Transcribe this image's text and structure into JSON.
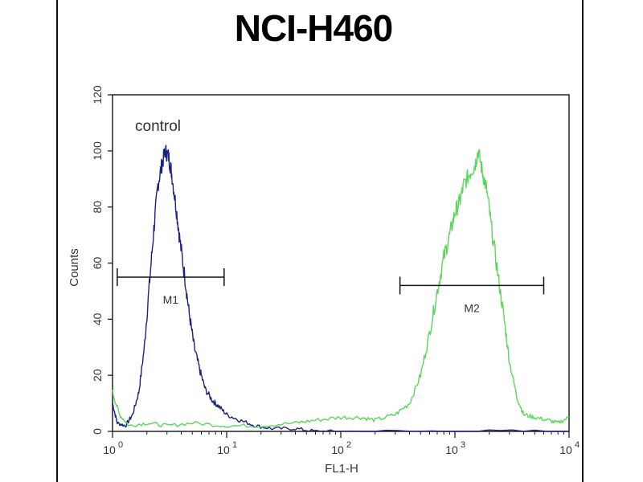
{
  "chart_data": {
    "type": "line",
    "title": "NCI-H460",
    "xlabel": "FL1-H",
    "ylabel": "Counts",
    "x_scale": "log10",
    "xlim": [
      1,
      10000
    ],
    "ylim": [
      0,
      120
    ],
    "x_tick_labels": [
      {
        "base": "10",
        "exp": "0"
      },
      {
        "base": "10",
        "exp": "1"
      },
      {
        "base": "10",
        "exp": "2"
      },
      {
        "base": "10",
        "exp": "3"
      },
      {
        "base": "10",
        "exp": "4"
      }
    ],
    "y_ticks": [
      0,
      20,
      40,
      60,
      80,
      100,
      120
    ],
    "series": [
      {
        "name": "control",
        "color": "#1a237e",
        "points": [
          [
            1.0,
            10
          ],
          [
            1.1,
            3
          ],
          [
            1.3,
            2
          ],
          [
            1.5,
            6
          ],
          [
            1.7,
            14
          ],
          [
            1.9,
            30
          ],
          [
            2.1,
            52
          ],
          [
            2.3,
            72
          ],
          [
            2.5,
            88
          ],
          [
            2.7,
            95
          ],
          [
            2.9,
            100
          ],
          [
            3.1,
            98
          ],
          [
            3.3,
            92
          ],
          [
            3.6,
            80
          ],
          [
            3.9,
            68
          ],
          [
            4.3,
            55
          ],
          [
            4.7,
            42
          ],
          [
            5.2,
            30
          ],
          [
            5.8,
            22
          ],
          [
            6.5,
            15
          ],
          [
            7.5,
            11
          ],
          [
            8.5,
            9
          ],
          [
            10,
            6
          ],
          [
            13,
            4
          ],
          [
            18,
            2
          ],
          [
            25,
            1
          ],
          [
            40,
            1
          ],
          [
            60,
            0
          ],
          [
            100,
            0
          ],
          [
            1000,
            0
          ],
          [
            10000,
            0
          ]
        ]
      },
      {
        "name": "",
        "color": "#5cd65c",
        "points": [
          [
            1.0,
            14
          ],
          [
            1.15,
            6
          ],
          [
            1.4,
            2
          ],
          [
            2,
            3
          ],
          [
            3,
            2
          ],
          [
            5,
            3
          ],
          [
            10,
            2
          ],
          [
            20,
            2
          ],
          [
            40,
            3
          ],
          [
            60,
            4
          ],
          [
            100,
            5
          ],
          [
            150,
            5
          ],
          [
            200,
            4
          ],
          [
            300,
            6
          ],
          [
            400,
            10
          ],
          [
            500,
            20
          ],
          [
            600,
            35
          ],
          [
            700,
            50
          ],
          [
            800,
            62
          ],
          [
            900,
            70
          ],
          [
            1000,
            78
          ],
          [
            1100,
            82
          ],
          [
            1200,
            88
          ],
          [
            1350,
            92
          ],
          [
            1500,
            95
          ],
          [
            1600,
            100
          ],
          [
            1750,
            92
          ],
          [
            1900,
            86
          ],
          [
            2100,
            72
          ],
          [
            2400,
            55
          ],
          [
            2700,
            40
          ],
          [
            3000,
            25
          ],
          [
            3500,
            12
          ],
          [
            4000,
            6
          ],
          [
            5000,
            5
          ],
          [
            6500,
            4
          ],
          [
            8000,
            3
          ],
          [
            10000,
            5
          ]
        ]
      }
    ],
    "markers": [
      {
        "label": "M1",
        "x_start": 1.1,
        "x_end": 9.5,
        "y": 55
      },
      {
        "label": "M2",
        "x_start": 330,
        "x_end": 6000,
        "y": 52
      }
    ],
    "annotations": [
      {
        "text": "control"
      }
    ]
  }
}
